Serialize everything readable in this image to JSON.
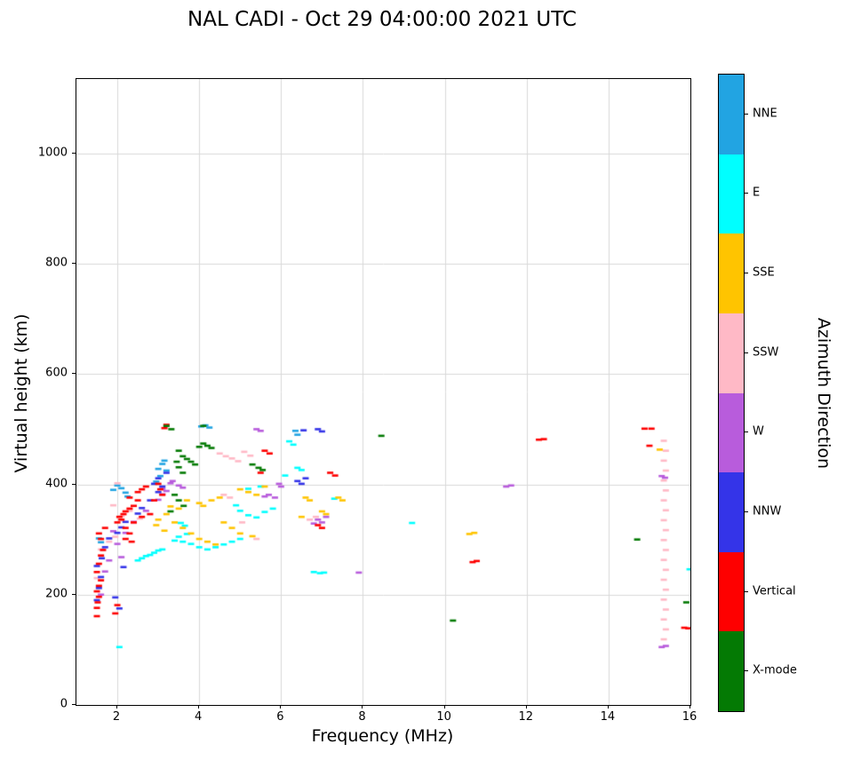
{
  "title": "NAL CADI - Oct 29 04:00:00 2021 UTC",
  "chart_data": {
    "type": "scatter",
    "title": "NAL CADI - Oct 29 04:00:00 2021 UTC",
    "xlabel": "Frequency (MHz)",
    "ylabel": "Virtual height (km)",
    "xlim": [
      1,
      16
    ],
    "ylim": [
      0,
      1135
    ],
    "xticks": [
      2,
      4,
      6,
      8,
      10,
      12,
      14,
      16
    ],
    "yticks": [
      0,
      200,
      400,
      600,
      800,
      1000
    ],
    "grid": true,
    "marker": "horizontal-dash",
    "legend_position": "right-colorbar",
    "series": [
      {
        "name": "NNE",
        "color": "#22A4E2",
        "points": [
          [
            1.55,
            302
          ],
          [
            1.6,
            295
          ],
          [
            1.9,
            390
          ],
          [
            2.0,
            398
          ],
          [
            2.1,
            393
          ],
          [
            2.2,
            385
          ],
          [
            2.25,
            378
          ],
          [
            2.95,
            405
          ],
          [
            3.0,
            428
          ],
          [
            3.05,
            415
          ],
          [
            3.1,
            437
          ],
          [
            3.15,
            443
          ],
          [
            3.2,
            425
          ],
          [
            4.05,
            505
          ],
          [
            4.15,
            507
          ],
          [
            4.25,
            503
          ],
          [
            6.35,
            497
          ],
          [
            6.4,
            490
          ]
        ]
      },
      {
        "name": "E",
        "color": "#00FFFF",
        "points": [
          [
            2.05,
            105
          ],
          [
            2.5,
            262
          ],
          [
            2.6,
            266
          ],
          [
            2.7,
            270
          ],
          [
            2.8,
            272
          ],
          [
            2.9,
            276
          ],
          [
            3.0,
            280
          ],
          [
            3.1,
            282
          ],
          [
            3.4,
            298
          ],
          [
            3.5,
            305
          ],
          [
            3.55,
            330
          ],
          [
            3.6,
            296
          ],
          [
            3.65,
            325
          ],
          [
            3.7,
            310
          ],
          [
            3.8,
            292
          ],
          [
            4.0,
            286
          ],
          [
            4.2,
            282
          ],
          [
            4.4,
            286
          ],
          [
            4.6,
            291
          ],
          [
            4.8,
            296
          ],
          [
            4.9,
            362
          ],
          [
            5.0,
            301
          ],
          [
            5.0,
            352
          ],
          [
            5.2,
            344
          ],
          [
            5.2,
            392
          ],
          [
            5.4,
            340
          ],
          [
            5.5,
            396
          ],
          [
            5.6,
            350
          ],
          [
            5.8,
            356
          ],
          [
            6.1,
            416
          ],
          [
            6.2,
            478
          ],
          [
            6.3,
            472
          ],
          [
            6.4,
            430
          ],
          [
            6.5,
            426
          ],
          [
            6.8,
            241
          ],
          [
            6.95,
            239
          ],
          [
            7.05,
            240
          ],
          [
            7.3,
            374
          ],
          [
            9.2,
            330
          ],
          [
            15.98,
            246
          ]
        ]
      },
      {
        "name": "SSE",
        "color": "#FFC400",
        "points": [
          [
            2.95,
            326
          ],
          [
            3.0,
            336
          ],
          [
            3.15,
            316
          ],
          [
            3.2,
            346
          ],
          [
            3.3,
            360
          ],
          [
            3.4,
            331
          ],
          [
            3.5,
            356
          ],
          [
            3.6,
            321
          ],
          [
            3.7,
            371
          ],
          [
            3.8,
            311
          ],
          [
            4.0,
            301
          ],
          [
            4.0,
            366
          ],
          [
            4.1,
            361
          ],
          [
            4.2,
            296
          ],
          [
            4.3,
            371
          ],
          [
            4.4,
            291
          ],
          [
            4.5,
            376
          ],
          [
            4.6,
            331
          ],
          [
            4.8,
            321
          ],
          [
            5.0,
            311
          ],
          [
            5.0,
            391
          ],
          [
            5.2,
            386
          ],
          [
            5.3,
            306
          ],
          [
            5.4,
            381
          ],
          [
            5.6,
            396
          ],
          [
            6.5,
            341
          ],
          [
            6.6,
            376
          ],
          [
            6.7,
            371
          ],
          [
            7.0,
            351
          ],
          [
            7.1,
            346
          ],
          [
            7.4,
            376
          ],
          [
            7.5,
            371
          ],
          [
            10.6,
            310
          ],
          [
            10.72,
            312
          ],
          [
            15.25,
            463
          ]
        ]
      },
      {
        "name": "SSW",
        "color": "#FFB9C6",
        "points": [
          [
            1.5,
            230
          ],
          [
            1.6,
            282
          ],
          [
            1.8,
            296
          ],
          [
            1.9,
            362
          ],
          [
            1.95,
            305
          ],
          [
            2.0,
            402
          ],
          [
            2.1,
            342
          ],
          [
            2.3,
            352
          ],
          [
            2.4,
            330
          ],
          [
            2.55,
            338
          ],
          [
            4.5,
            456
          ],
          [
            4.6,
            381
          ],
          [
            4.65,
            451
          ],
          [
            4.75,
            376
          ],
          [
            4.8,
            447
          ],
          [
            4.95,
            442
          ],
          [
            5.05,
            331
          ],
          [
            5.1,
            459
          ],
          [
            5.25,
            452
          ],
          [
            5.4,
            301
          ],
          [
            6.7,
            336
          ],
          [
            6.85,
            341
          ],
          [
            15.35,
            479
          ],
          [
            15.4,
            461
          ],
          [
            15.35,
            443
          ],
          [
            15.4,
            425
          ],
          [
            15.35,
            407
          ],
          [
            15.4,
            389
          ],
          [
            15.35,
            371
          ],
          [
            15.4,
            353
          ],
          [
            15.35,
            335
          ],
          [
            15.4,
            317
          ],
          [
            15.35,
            299
          ],
          [
            15.4,
            281
          ],
          [
            15.35,
            263
          ],
          [
            15.4,
            245
          ],
          [
            15.35,
            227
          ],
          [
            15.4,
            209
          ],
          [
            15.35,
            191
          ],
          [
            15.4,
            173
          ],
          [
            15.35,
            155
          ],
          [
            15.4,
            137
          ],
          [
            15.35,
            119
          ]
        ]
      },
      {
        "name": "W",
        "color": "#B85CDC",
        "points": [
          [
            1.6,
            200
          ],
          [
            1.7,
            242
          ],
          [
            1.8,
            262
          ],
          [
            1.9,
            315
          ],
          [
            2.0,
            292
          ],
          [
            2.1,
            268
          ],
          [
            2.2,
            312
          ],
          [
            2.4,
            332
          ],
          [
            2.7,
            352
          ],
          [
            3.0,
            372
          ],
          [
            3.1,
            382
          ],
          [
            3.1,
            392
          ],
          [
            3.2,
            388
          ],
          [
            3.3,
            402
          ],
          [
            3.35,
            406
          ],
          [
            3.5,
            398
          ],
          [
            3.6,
            394
          ],
          [
            5.4,
            500
          ],
          [
            5.5,
            497
          ],
          [
            5.6,
            378
          ],
          [
            5.7,
            381
          ],
          [
            5.85,
            376
          ],
          [
            5.95,
            401
          ],
          [
            6.0,
            396
          ],
          [
            6.8,
            329
          ],
          [
            6.9,
            336
          ],
          [
            7.0,
            331
          ],
          [
            7.1,
            341
          ],
          [
            7.9,
            240
          ],
          [
            11.5,
            396
          ],
          [
            11.62,
            398
          ],
          [
            15.3,
            105
          ],
          [
            15.3,
            415
          ],
          [
            15.38,
            412
          ],
          [
            15.4,
            107
          ]
        ]
      },
      {
        "name": "NNW",
        "color": "#3434E8",
        "points": [
          [
            1.5,
            190
          ],
          [
            1.5,
            252
          ],
          [
            1.55,
            212
          ],
          [
            1.6,
            232
          ],
          [
            1.62,
            266
          ],
          [
            1.7,
            286
          ],
          [
            1.8,
            302
          ],
          [
            1.95,
            195
          ],
          [
            2.0,
            312
          ],
          [
            2.05,
            175
          ],
          [
            2.1,
            322
          ],
          [
            2.15,
            250
          ],
          [
            2.2,
            332
          ],
          [
            2.5,
            347
          ],
          [
            2.6,
            357
          ],
          [
            2.8,
            371
          ],
          [
            2.9,
            401
          ],
          [
            3.0,
            386
          ],
          [
            3.0,
            411
          ],
          [
            3.1,
            396
          ],
          [
            3.2,
            421
          ],
          [
            6.4,
            406
          ],
          [
            6.5,
            401
          ],
          [
            6.55,
            498
          ],
          [
            6.6,
            411
          ],
          [
            6.9,
            500
          ],
          [
            7.0,
            496
          ]
        ]
      },
      {
        "name": "Vertical",
        "color": "#FE0000",
        "points": [
          [
            1.5,
            161
          ],
          [
            1.5,
            176
          ],
          [
            1.5,
            206
          ],
          [
            1.5,
            241
          ],
          [
            1.52,
            186
          ],
          [
            1.55,
            196
          ],
          [
            1.55,
            216
          ],
          [
            1.55,
            256
          ],
          [
            1.55,
            311
          ],
          [
            1.6,
            226
          ],
          [
            1.6,
            271
          ],
          [
            1.6,
            301
          ],
          [
            1.65,
            281
          ],
          [
            1.7,
            321
          ],
          [
            1.95,
            166
          ],
          [
            2.0,
            181
          ],
          [
            2.0,
            331
          ],
          [
            2.05,
            341
          ],
          [
            2.1,
            336
          ],
          [
            2.15,
            346
          ],
          [
            2.2,
            301
          ],
          [
            2.2,
            321
          ],
          [
            2.2,
            351
          ],
          [
            2.3,
            311
          ],
          [
            2.3,
            356
          ],
          [
            2.3,
            376
          ],
          [
            2.35,
            296
          ],
          [
            2.4,
            331
          ],
          [
            2.4,
            361
          ],
          [
            2.5,
            371
          ],
          [
            2.5,
            386
          ],
          [
            2.6,
            341
          ],
          [
            2.6,
            391
          ],
          [
            2.7,
            396
          ],
          [
            2.8,
            346
          ],
          [
            2.9,
            371
          ],
          [
            3.0,
            401
          ],
          [
            3.05,
            391
          ],
          [
            3.1,
            381
          ],
          [
            3.15,
            502
          ],
          [
            3.2,
            508
          ],
          [
            5.5,
            421
          ],
          [
            5.6,
            461
          ],
          [
            5.72,
            456
          ],
          [
            6.9,
            326
          ],
          [
            7.0,
            321
          ],
          [
            7.2,
            421
          ],
          [
            7.32,
            416
          ],
          [
            10.68,
            259
          ],
          [
            10.78,
            261
          ],
          [
            12.3,
            481
          ],
          [
            12.42,
            482
          ],
          [
            14.88,
            501
          ],
          [
            15.05,
            501
          ],
          [
            15.0,
            470
          ],
          [
            15.85,
            140
          ],
          [
            15.95,
            139
          ]
        ]
      },
      {
        "name": "X-mode",
        "color": "#047A04",
        "points": [
          [
            3.2,
            506
          ],
          [
            3.3,
            351
          ],
          [
            3.32,
            500
          ],
          [
            3.4,
            381
          ],
          [
            3.45,
            441
          ],
          [
            3.5,
            371
          ],
          [
            3.5,
            431
          ],
          [
            3.5,
            461
          ],
          [
            3.6,
            421
          ],
          [
            3.6,
            451
          ],
          [
            3.62,
            361
          ],
          [
            3.7,
            446
          ],
          [
            3.8,
            441
          ],
          [
            3.9,
            436
          ],
          [
            4.0,
            468
          ],
          [
            4.1,
            474
          ],
          [
            4.1,
            506
          ],
          [
            4.2,
            470
          ],
          [
            4.3,
            466
          ],
          [
            5.3,
            436
          ],
          [
            5.45,
            430
          ],
          [
            5.55,
            426
          ],
          [
            8.45,
            488
          ],
          [
            10.2,
            153
          ],
          [
            14.7,
            300
          ],
          [
            15.9,
            186
          ]
        ]
      }
    ]
  },
  "colorbar": {
    "title": "Azimuth Direction",
    "entries": [
      {
        "label": "NNE",
        "color": "#22A4E2"
      },
      {
        "label": "E",
        "color": "#00FFFF"
      },
      {
        "label": "SSE",
        "color": "#FFC400"
      },
      {
        "label": "SSW",
        "color": "#FFB9C6"
      },
      {
        "label": "W",
        "color": "#B85CDC"
      },
      {
        "label": "NNW",
        "color": "#3434E8"
      },
      {
        "label": "Vertical",
        "color": "#FE0000"
      },
      {
        "label": "X-mode",
        "color": "#047A04"
      }
    ]
  }
}
